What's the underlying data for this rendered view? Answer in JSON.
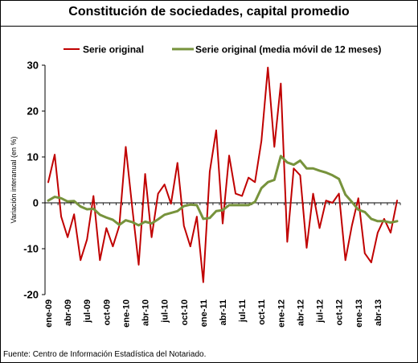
{
  "chart_data": {
    "type": "line",
    "title": "Constitución de sociedades, capital promedio",
    "ylabel": "Variación interanual (en %)",
    "xlabel": "",
    "ylim": [
      -20,
      30
    ],
    "yticks": [
      -20,
      -10,
      0,
      10,
      20,
      30
    ],
    "grid": false,
    "legend_position": "top",
    "x_tick_labels": [
      "ene-09",
      "abr-09",
      "jul-09",
      "oct-09",
      "ene-10",
      "abr-10",
      "jul-10",
      "oct-10",
      "ene-11",
      "abr-11",
      "jul-11",
      "oct-11",
      "ene-12",
      "abr-12",
      "jul-12",
      "oct-12",
      "ene-13",
      "abr-13"
    ],
    "series": [
      {
        "name": "Serie original",
        "color": "#c00000",
        "values": [
          4.5,
          10.5,
          -3,
          -7.5,
          -2.5,
          -12.5,
          -8,
          1.5,
          -12.5,
          -5.5,
          -9.5,
          -5,
          12.2,
          -1,
          -13.5,
          6.3,
          -7.5,
          2,
          4,
          -0.2,
          8.7,
          -5,
          -9.5,
          -3,
          -17.3,
          6.8,
          15.8,
          -4.5,
          10.3,
          2,
          1.5,
          5.5,
          4.5,
          13.5,
          29.5,
          12.2,
          26,
          -8.5,
          7.5,
          6,
          -9.8,
          2,
          -5.5,
          0.5,
          0,
          2,
          -12.5,
          -5,
          1,
          -11,
          -13,
          -6.5,
          -3.5,
          -6.5,
          0.5
        ]
      },
      {
        "name": "Serie original (media móvil de 12 meses)",
        "color": "#77933c",
        "values": [
          0.5,
          1.3,
          1,
          0.3,
          0.4,
          -0.8,
          -1.4,
          -1.3,
          -2.6,
          -3.2,
          -3.7,
          -4.8,
          -3.8,
          -4.2,
          -4.9,
          -4.1,
          -4.5,
          -3.6,
          -2.6,
          -2.2,
          -1.8,
          -0.7,
          -0.4,
          -0.5,
          -3.5,
          -3.3,
          -1.8,
          -1.6,
          -0.5,
          -0.5,
          -0.5,
          -0.5,
          0.2,
          3.2,
          4.5,
          5,
          10.2,
          8.8,
          8.3,
          9.2,
          7.5,
          7.5,
          7,
          6.6,
          6,
          5.2,
          1.8,
          0.2,
          -1.5,
          -2,
          -3.5,
          -4,
          -4,
          -4.3,
          -4
        ]
      }
    ]
  },
  "source": "Fuente: Centro de Información Estadística del Notariado."
}
